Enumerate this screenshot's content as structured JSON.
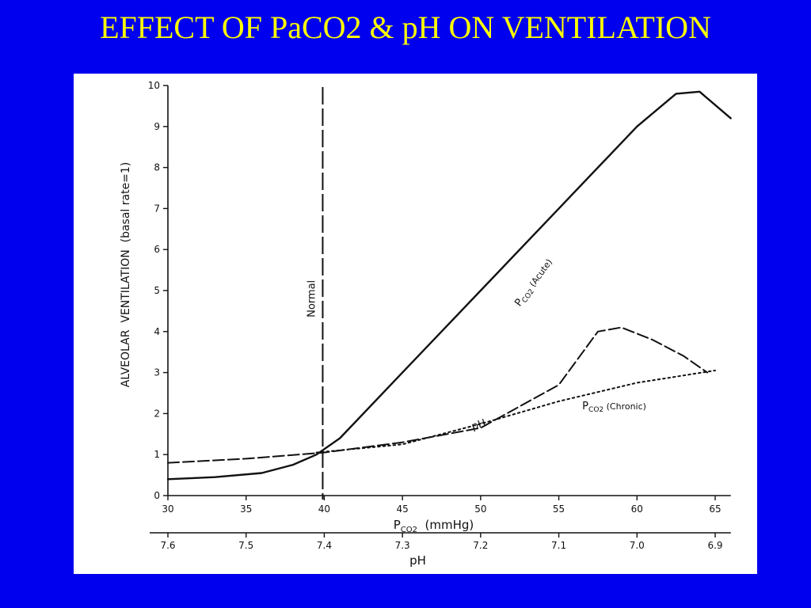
{
  "slide": {
    "title": "EFFECT OF PaCO2 & pH ON VENTILATION"
  },
  "colors": {
    "background": "#0000ee",
    "title": "#ffff00",
    "panel": "#ffffff",
    "ink": "#111111"
  },
  "chart_data": {
    "type": "line",
    "ylabel": "ALVEOLAR  VENTILATION  (basal rate=1)",
    "xlabel": "PCO2  (mmHg)",
    "x2label": "pH",
    "xlim": [
      30,
      66
    ],
    "ylim": [
      0,
      10
    ],
    "x_ticks": [
      30,
      35,
      40,
      45,
      50,
      55,
      60,
      65
    ],
    "y_ticks": [
      0,
      1,
      2,
      3,
      4,
      5,
      6,
      7,
      8,
      9,
      10
    ],
    "ph_ticks": [
      {
        "x": 30,
        "label": "7.6"
      },
      {
        "x": 35,
        "label": "7.5"
      },
      {
        "x": 40,
        "label": "7.4"
      },
      {
        "x": 45,
        "label": "7.3"
      },
      {
        "x": 50,
        "label": "7.2"
      },
      {
        "x": 55,
        "label": "7.1"
      },
      {
        "x": 60,
        "label": "7.0"
      },
      {
        "x": 65,
        "label": "6.9"
      }
    ],
    "reference_line": {
      "x": 39.9,
      "label": "Normal"
    },
    "grid": false,
    "series": [
      {
        "name": "PCO2 (Acute)",
        "style": "solid",
        "x": [
          30,
          33,
          36,
          38,
          39.5,
          41,
          45,
          50,
          55,
          60,
          62.5,
          64,
          66
        ],
        "y": [
          0.4,
          0.45,
          0.55,
          0.75,
          1.0,
          1.4,
          3.0,
          5.0,
          7.0,
          9.0,
          9.8,
          9.85,
          9.2
        ]
      },
      {
        "name": "pH",
        "style": "dashed",
        "x": [
          30,
          35,
          40,
          45,
          50,
          55,
          57.5,
          59,
          61,
          63,
          64.5
        ],
        "y": [
          0.8,
          0.9,
          1.05,
          1.3,
          1.65,
          2.7,
          4.0,
          4.1,
          3.8,
          3.4,
          3.0
        ]
      },
      {
        "name": "PCO2 (Chronic)",
        "style": "dotted",
        "x": [
          39.5,
          45,
          50,
          55,
          60,
          65
        ],
        "y": [
          1.05,
          1.25,
          1.75,
          2.3,
          2.75,
          3.05
        ]
      }
    ],
    "series_labels": [
      {
        "series": "PCO2 (Acute)",
        "text_main": "P",
        "text_sub": "CO2",
        "text_tail": " (Acute)",
        "x": 52.5,
        "y": 4.6,
        "angle": -54
      },
      {
        "series": "pH",
        "text_main": "pH",
        "x": 49.5,
        "y": 1.6,
        "angle": -18
      },
      {
        "series": "PCO2 (Chronic)",
        "text_main": "P",
        "text_sub": "CO2",
        "text_tail": " (Chronic)",
        "x": 56.5,
        "y": 2.1,
        "angle": 0
      }
    ]
  }
}
